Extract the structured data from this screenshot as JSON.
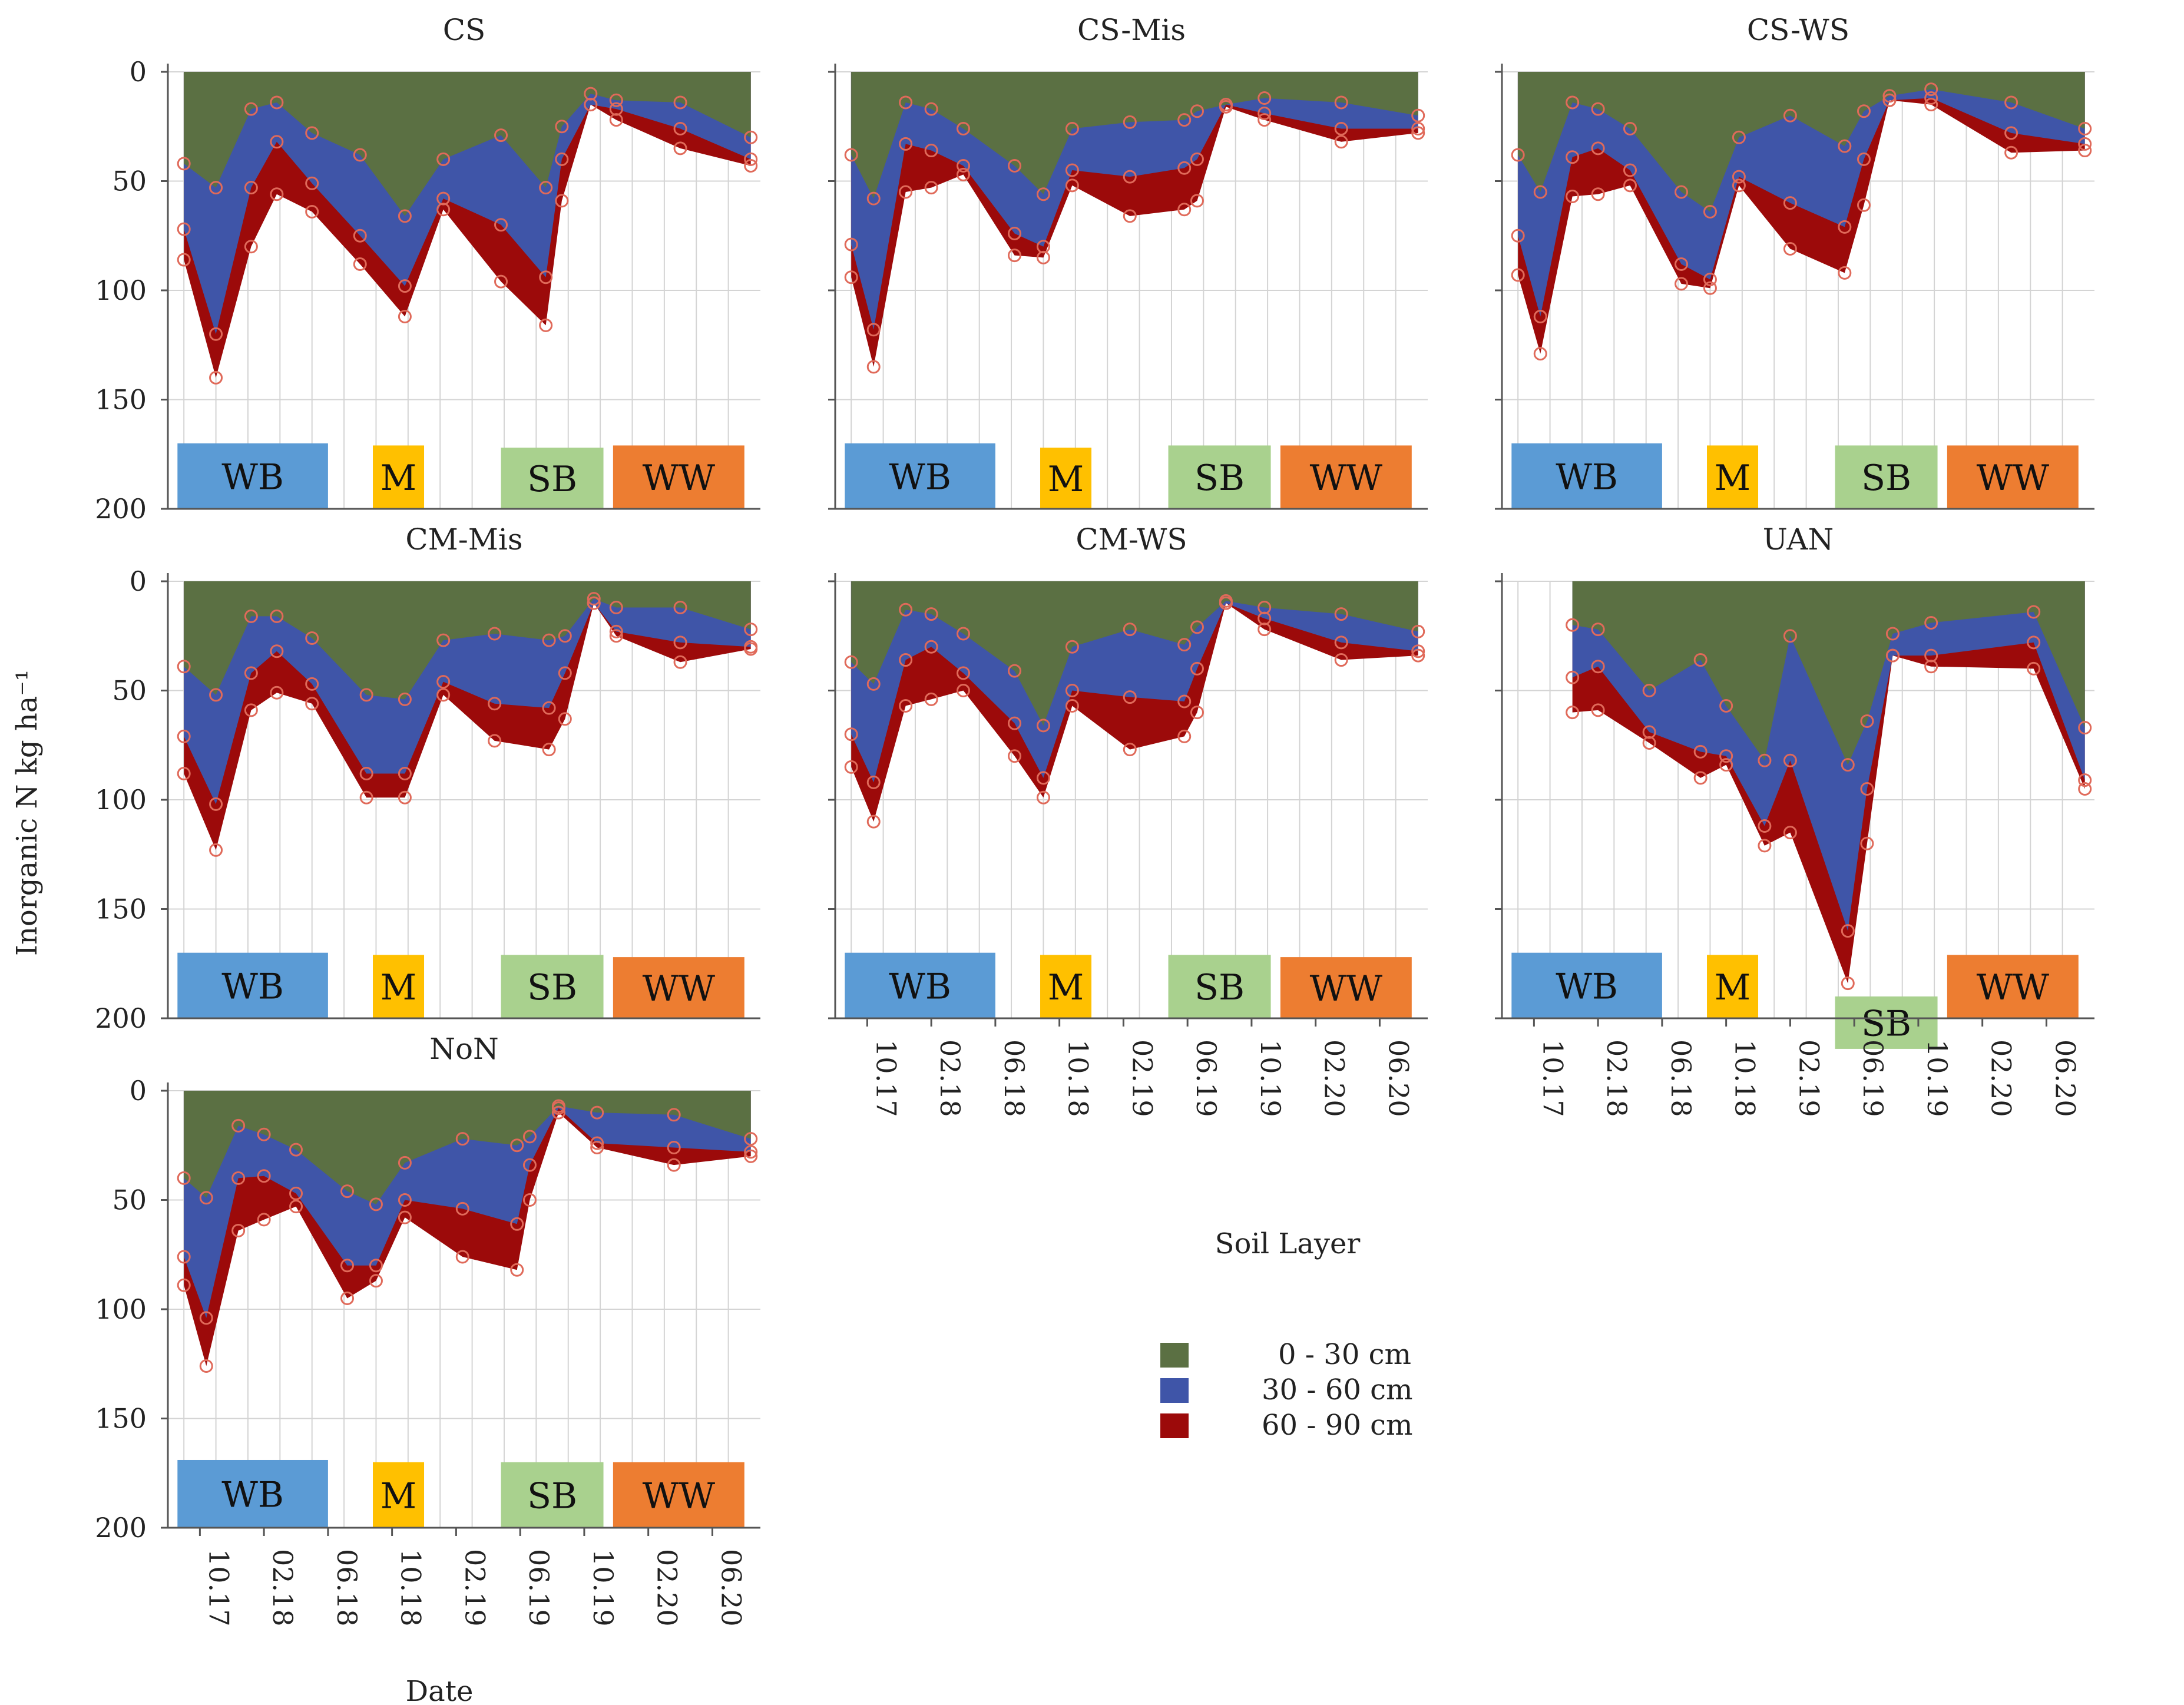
{
  "figure": {
    "ylabel": "Inorganic N kg ha⁻¹",
    "xlabel": "Date",
    "date_ticks": [
      "10.17",
      "02.18",
      "06.18",
      "10.18",
      "02.19",
      "06.19",
      "10.19",
      "02.20",
      "06.20"
    ],
    "y_ticks": [
      0,
      50,
      100,
      150,
      200
    ],
    "ylim": [
      0,
      200
    ],
    "y_inverted": true,
    "colors": {
      "layer_0_30": "#5b7043",
      "layer_30_60": "#3f55a8",
      "layer_60_90": "#9c0a0a",
      "markers": "#e06a5a",
      "grid": "#d4d4d4",
      "crop_WB": "#5b9bd5",
      "crop_M": "#ffc000",
      "crop_SB": "#a9d18e",
      "crop_WW": "#ed7d31"
    }
  },
  "legend": {
    "title": "Soil Layer",
    "items": [
      {
        "label": "0 - 30 cm",
        "key": "layer_0_30"
      },
      {
        "label": "30 - 60 cm",
        "key": "layer_30_60"
      },
      {
        "label": "60 - 90 cm",
        "key": "layer_60_90"
      }
    ]
  },
  "chart_data": [
    {
      "type": "area",
      "title": "CS",
      "x": [
        -0.25,
        0.25,
        0.8,
        1.2,
        1.75,
        2.5,
        3.2,
        3.8,
        4.7,
        5.4,
        5.65,
        6.1,
        6.5,
        7.5,
        8.6
      ],
      "cumulative": [
        [
          42,
          53,
          17,
          14,
          28,
          38,
          66,
          40,
          29,
          53,
          25,
          10,
          13,
          14,
          30
        ],
        [
          72,
          120,
          53,
          32,
          51,
          75,
          98,
          58,
          70,
          94,
          40,
          15,
          17,
          26,
          40
        ],
        [
          86,
          140,
          80,
          56,
          64,
          88,
          112,
          63,
          96,
          116,
          59,
          15,
          22,
          35,
          43
        ]
      ],
      "crops": [
        {
          "label": "WB",
          "y0": 170,
          "y1": 200
        },
        {
          "label": "M",
          "y0": 171,
          "y1": 200
        },
        {
          "label": "SB",
          "y0": 172,
          "y1": 200
        },
        {
          "label": "WW",
          "y0": 171,
          "y1": 200
        }
      ]
    },
    {
      "type": "area",
      "title": "CS-Mis",
      "x": [
        -0.25,
        0.1,
        0.6,
        1.0,
        1.5,
        2.3,
        2.75,
        3.2,
        4.1,
        4.95,
        5.15,
        5.6,
        6.2,
        7.4,
        8.6
      ],
      "cumulative": [
        [
          38,
          58,
          14,
          17,
          26,
          43,
          56,
          26,
          23,
          22,
          18,
          15,
          12,
          14,
          20
        ],
        [
          79,
          118,
          33,
          36,
          43,
          74,
          80,
          45,
          48,
          44,
          40,
          15,
          19,
          26,
          26
        ],
        [
          94,
          135,
          55,
          53,
          47,
          84,
          85,
          52,
          66,
          63,
          59,
          16,
          22,
          32,
          28
        ]
      ],
      "crops": [
        {
          "label": "WB",
          "y0": 170,
          "y1": 200
        },
        {
          "label": "M",
          "y0": 172,
          "y1": 200
        },
        {
          "label": "SB",
          "y0": 171,
          "y1": 200
        },
        {
          "label": "WW",
          "y0": 171,
          "y1": 200
        }
      ]
    },
    {
      "type": "area",
      "title": "CS-WS",
      "x": [
        -0.25,
        0.1,
        0.6,
        1.0,
        1.5,
        2.3,
        2.75,
        3.2,
        4.0,
        4.85,
        5.15,
        5.55,
        6.2,
        7.45,
        8.6
      ],
      "cumulative": [
        [
          38,
          55,
          14,
          17,
          26,
          55,
          64,
          30,
          20,
          34,
          18,
          11,
          8,
          14,
          26
        ],
        [
          75,
          112,
          39,
          35,
          45,
          88,
          95,
          48,
          60,
          71,
          40,
          13,
          12,
          28,
          33
        ],
        [
          93,
          129,
          57,
          56,
          52,
          97,
          99,
          52,
          81,
          92,
          61,
          13,
          15,
          37,
          36
        ]
      ],
      "crops": [
        {
          "label": "WB",
          "y0": 170,
          "y1": 200
        },
        {
          "label": "M",
          "y0": 171,
          "y1": 200
        },
        {
          "label": "SB",
          "y0": 171,
          "y1": 200
        },
        {
          "label": "WW",
          "y0": 171,
          "y1": 200
        }
      ]
    },
    {
      "type": "area",
      "title": "CM-Mis",
      "x": [
        -0.25,
        0.25,
        0.8,
        1.2,
        1.75,
        2.6,
        3.2,
        3.8,
        4.6,
        5.45,
        5.7,
        6.15,
        6.5,
        7.5,
        8.6
      ],
      "cumulative": [
        [
          39,
          52,
          16,
          16,
          26,
          52,
          54,
          27,
          24,
          27,
          25,
          8,
          12,
          12,
          22
        ],
        [
          71,
          102,
          42,
          32,
          47,
          88,
          88,
          46,
          56,
          58,
          42,
          10,
          23,
          28,
          30
        ],
        [
          88,
          123,
          59,
          51,
          56,
          99,
          99,
          52,
          73,
          77,
          63,
          10,
          25,
          37,
          31
        ]
      ],
      "crops": [
        {
          "label": "WB",
          "y0": 170,
          "y1": 200
        },
        {
          "label": "M",
          "y0": 171,
          "y1": 200
        },
        {
          "label": "SB",
          "y0": 171,
          "y1": 200
        },
        {
          "label": "WW",
          "y0": 172,
          "y1": 200
        }
      ]
    },
    {
      "type": "area",
      "title": "CM-WS",
      "x": [
        -0.25,
        0.1,
        0.6,
        1.0,
        1.5,
        2.3,
        2.75,
        3.2,
        4.1,
        4.95,
        5.15,
        5.6,
        6.2,
        7.4,
        8.6
      ],
      "cumulative": [
        [
          37,
          47,
          13,
          15,
          24,
          41,
          66,
          30,
          22,
          29,
          21,
          9,
          12,
          15,
          23
        ],
        [
          70,
          92,
          36,
          30,
          42,
          65,
          90,
          50,
          53,
          55,
          40,
          10,
          17,
          28,
          32
        ],
        [
          85,
          110,
          57,
          54,
          50,
          80,
          99,
          57,
          77,
          71,
          60,
          10,
          22,
          36,
          34
        ]
      ],
      "crops": [
        {
          "label": "WB",
          "y0": 170,
          "y1": 200
        },
        {
          "label": "M",
          "y0": 171,
          "y1": 200
        },
        {
          "label": "SB",
          "y0": 171,
          "y1": 200
        },
        {
          "label": "WW",
          "y0": 172,
          "y1": 200
        }
      ]
    },
    {
      "type": "area",
      "title": "UAN",
      "x": [
        0.6,
        1.0,
        1.8,
        2.6,
        3.0,
        3.6,
        4.0,
        4.9,
        5.2,
        5.6,
        6.2,
        7.8,
        8.6
      ],
      "cumulative": [
        [
          20,
          22,
          50,
          36,
          57,
          82,
          25,
          84,
          64,
          24,
          19,
          14,
          67
        ],
        [
          44,
          39,
          69,
          78,
          80,
          112,
          82,
          160,
          95,
          34,
          34,
          28,
          91
        ],
        [
          60,
          59,
          74,
          90,
          84,
          121,
          115,
          184,
          120,
          34,
          39,
          40,
          95
        ]
      ],
      "crops": [
        {
          "label": "WB",
          "y0": 170,
          "y1": 200
        },
        {
          "label": "M",
          "y0": 171,
          "y1": 200
        },
        {
          "label": "SB",
          "y0": 190,
          "y1": 214
        },
        {
          "label": "WW",
          "y0": 171,
          "y1": 200
        }
      ]
    },
    {
      "type": "area",
      "title": "NoN",
      "x": [
        -0.25,
        0.1,
        0.6,
        1.0,
        1.5,
        2.3,
        2.75,
        3.2,
        4.1,
        4.95,
        5.15,
        5.6,
        6.2,
        7.4,
        8.6
      ],
      "cumulative": [
        [
          40,
          49,
          16,
          20,
          27,
          46,
          52,
          33,
          22,
          25,
          21,
          7,
          10,
          11,
          22
        ],
        [
          76,
          104,
          40,
          39,
          47,
          80,
          80,
          50,
          54,
          61,
          34,
          8,
          24,
          26,
          28
        ],
        [
          89,
          126,
          64,
          59,
          53,
          95,
          87,
          58,
          76,
          82,
          50,
          10,
          26,
          34,
          30
        ]
      ],
      "crops": [
        {
          "label": "WB",
          "y0": 169,
          "y1": 200
        },
        {
          "label": "M",
          "y0": 170,
          "y1": 200
        },
        {
          "label": "SB",
          "y0": 170,
          "y1": 200
        },
        {
          "label": "WW",
          "y0": 170,
          "y1": 200
        }
      ]
    }
  ]
}
